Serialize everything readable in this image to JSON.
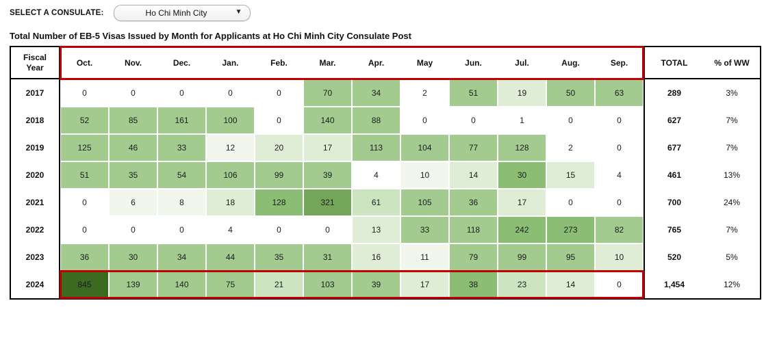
{
  "controls": {
    "select_label": "SELECT A CONSULATE:",
    "dropdown_value": "Ho Chi Minh City",
    "dropdown_caret": "▼"
  },
  "title": "Total Number of EB-5 Visas Issued by Month for Applicants at Ho Chi Minh City Consulate Post",
  "colors": {
    "annotation_red": "#c00000",
    "table_border": "#000000",
    "heat_palette": [
      "#ffffff",
      "#f1f7ed",
      "#dfedd6",
      "#cde4c1",
      "#a3cb90",
      "#8cbd75",
      "#74a65a",
      "#3d6a21"
    ]
  },
  "chart_data": {
    "type": "heatmap",
    "row_header": "Fiscal\nYear",
    "columns": [
      "Oct.",
      "Nov.",
      "Dec.",
      "Jan.",
      "Feb.",
      "Mar.",
      "Apr.",
      "May",
      "Jun.",
      "Jul.",
      "Aug.",
      "Sep."
    ],
    "total_label": "TOTAL",
    "pct_label": "% of WW",
    "highlights": {
      "header_months_boxed": true,
      "boxed_row_year": "2024",
      "box_color": "#c00000"
    },
    "rows": [
      {
        "year": "2017",
        "values": [
          0,
          0,
          0,
          0,
          0,
          70,
          34,
          2,
          51,
          19,
          50,
          63
        ],
        "shades": [
          0,
          0,
          0,
          0,
          0,
          4,
          4,
          0,
          4,
          2,
          4,
          4
        ],
        "total": "289",
        "pct": "3%"
      },
      {
        "year": "2018",
        "values": [
          52,
          85,
          161,
          100,
          0,
          140,
          88,
          0,
          0,
          1,
          0,
          0
        ],
        "shades": [
          4,
          4,
          4,
          4,
          0,
          4,
          4,
          0,
          0,
          0,
          0,
          0
        ],
        "total": "627",
        "pct": "7%"
      },
      {
        "year": "2019",
        "values": [
          125,
          46,
          33,
          12,
          20,
          17,
          113,
          104,
          77,
          128,
          2,
          0
        ],
        "shades": [
          4,
          4,
          4,
          1,
          2,
          2,
          4,
          4,
          4,
          4,
          0,
          0
        ],
        "total": "677",
        "pct": "7%"
      },
      {
        "year": "2020",
        "values": [
          51,
          35,
          54,
          106,
          99,
          39,
          4,
          10,
          14,
          30,
          15,
          4
        ],
        "shades": [
          4,
          4,
          4,
          4,
          4,
          4,
          0,
          1,
          2,
          5,
          2,
          0
        ],
        "total": "461",
        "pct": "13%"
      },
      {
        "year": "2021",
        "values": [
          0,
          6,
          8,
          18,
          128,
          321,
          61,
          105,
          36,
          17,
          0,
          0
        ],
        "shades": [
          0,
          1,
          1,
          2,
          5,
          6,
          3,
          4,
          4,
          2,
          0,
          0
        ],
        "total": "700",
        "pct": "24%"
      },
      {
        "year": "2022",
        "values": [
          0,
          0,
          0,
          4,
          0,
          0,
          13,
          33,
          118,
          242,
          273,
          82
        ],
        "shades": [
          0,
          0,
          0,
          0,
          0,
          0,
          2,
          4,
          4,
          5,
          5,
          4
        ],
        "total": "765",
        "pct": "7%"
      },
      {
        "year": "2023",
        "values": [
          36,
          30,
          34,
          44,
          35,
          31,
          16,
          11,
          79,
          99,
          95,
          10
        ],
        "shades": [
          4,
          4,
          4,
          4,
          4,
          4,
          2,
          1,
          4,
          4,
          4,
          2
        ],
        "total": "520",
        "pct": "5%"
      },
      {
        "year": "2024",
        "values": [
          845,
          139,
          140,
          75,
          21,
          103,
          39,
          17,
          38,
          23,
          14,
          0
        ],
        "shades": [
          7,
          4,
          4,
          4,
          3,
          4,
          4,
          2,
          5,
          3,
          2,
          0
        ],
        "total": "1,454",
        "pct": "12%"
      }
    ]
  }
}
